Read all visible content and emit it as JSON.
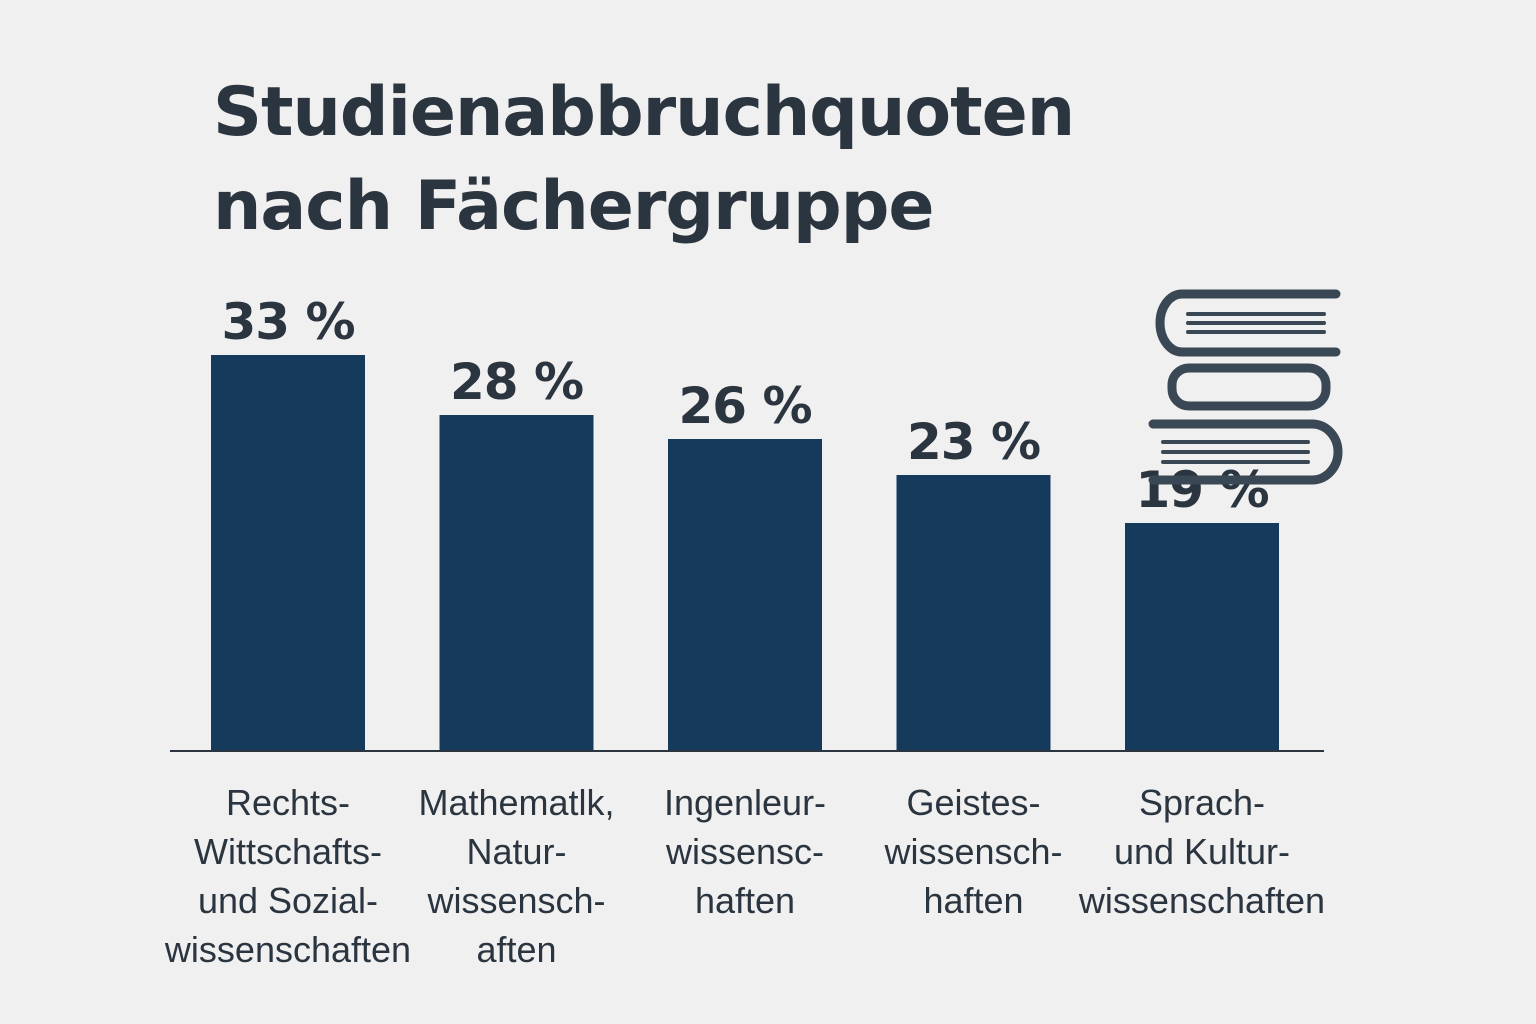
{
  "chart_data": {
    "type": "bar",
    "title_lines": [
      "Studienabbruchquoten",
      "nach Fächergruppe"
    ],
    "categories": [
      [
        "Rechts-",
        "Wittschafts-",
        "und Sozial-",
        "wissenschaften"
      ],
      [
        "Mathematlk,",
        "Natur-",
        "wissensch-",
        "aften"
      ],
      [
        "Ingenleur-",
        "wissensc-",
        "haften"
      ],
      [
        "Geistes-",
        "wissensch-",
        "haften"
      ],
      [
        "Sprach-",
        "und Kultur-",
        "wissenschaften"
      ]
    ],
    "values": [
      33,
      28,
      26,
      23,
      19
    ],
    "value_labels": [
      "33 %",
      "28 %",
      "26 %",
      "23 %",
      "19 %"
    ],
    "unit": "%",
    "xlabel": "",
    "ylabel": "",
    "grid": false,
    "legend": "none",
    "colors": {
      "bar": "#163a5c",
      "text": "#2b3540",
      "axis": "#2b3540",
      "background": "#f0f0f0",
      "icon": "#3a4754"
    },
    "decoration": "books-stack-icon"
  }
}
